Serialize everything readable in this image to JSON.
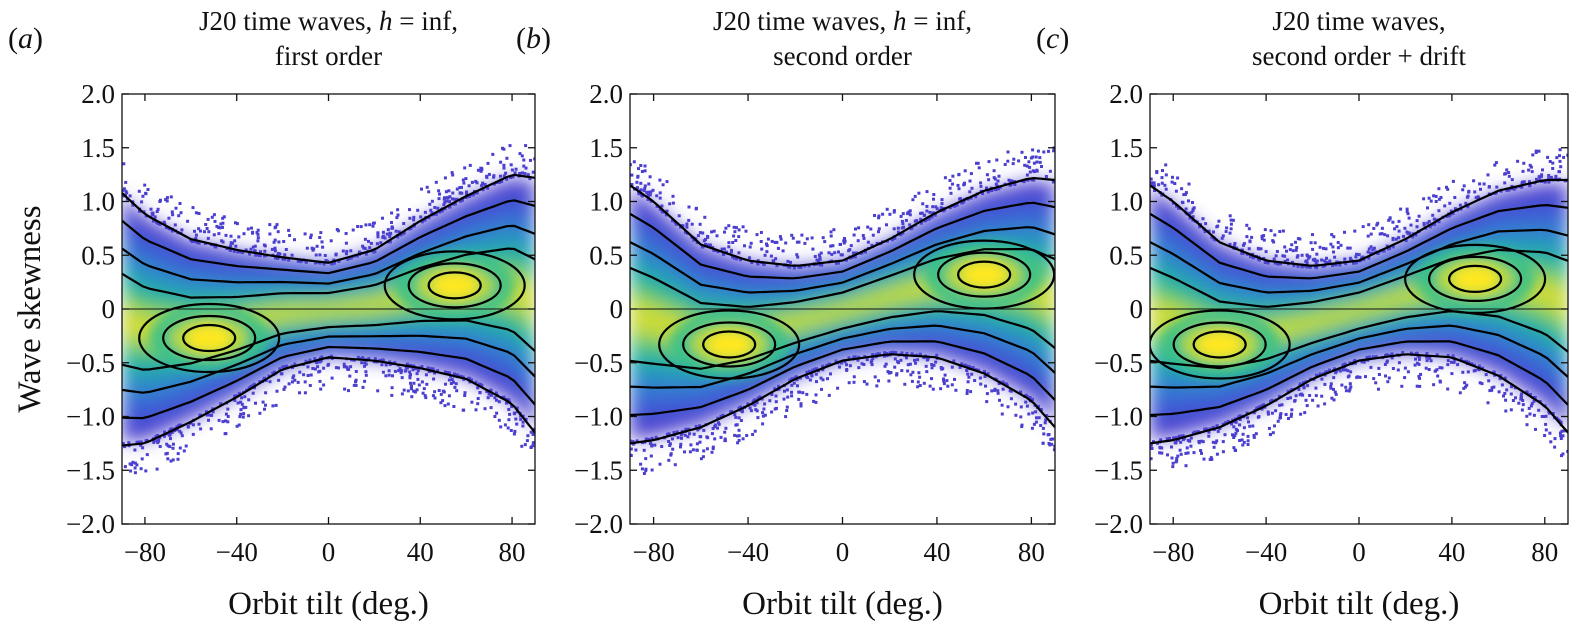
{
  "figure": {
    "ylabel": "Wave skewness",
    "xlabel": "Orbit tilt (deg.)"
  },
  "chart_data": [
    {
      "type": "scatter",
      "panel": "(a)",
      "panel_open": "(",
      "panel_letter": "a",
      "panel_close": ")",
      "title_line1_pre": "J20 time waves, ",
      "title_line1_var": "h",
      "title_line1_post": " = inf,",
      "title_line2": "first order",
      "xlabel": "Orbit tilt (deg.)",
      "ylabel": "Wave skewness",
      "xlim": [
        -90,
        90
      ],
      "ylim": [
        -2.0,
        2.0
      ],
      "xticks": [
        -80,
        -40,
        0,
        40,
        80
      ],
      "xtick_labels": [
        "−80",
        "−40",
        "0",
        "40",
        "80"
      ],
      "yticks": [
        2.0,
        1.5,
        1.0,
        0.5,
        0,
        -0.5,
        -1.0,
        -1.5,
        -2.0
      ],
      "ytick_labels": [
        "2.0",
        "1.5",
        "1.0",
        "0.5",
        "0",
        "−0.5",
        "−1.0",
        "−1.5",
        "−2.0"
      ],
      "zero_line": true,
      "density_peaks": [
        {
          "x": -52,
          "y": -0.27
        },
        {
          "x": 55,
          "y": 0.22
        }
      ],
      "upper_envelope": [
        [
          -90,
          1.08
        ],
        [
          -80,
          0.88
        ],
        [
          -60,
          0.65
        ],
        [
          -40,
          0.55
        ],
        [
          -20,
          0.48
        ],
        [
          0,
          0.43
        ],
        [
          20,
          0.55
        ],
        [
          40,
          0.82
        ],
        [
          60,
          1.05
        ],
        [
          80,
          1.25
        ],
        [
          90,
          1.22
        ]
      ],
      "lower_envelope": [
        [
          -90,
          -1.27
        ],
        [
          -80,
          -1.25
        ],
        [
          -60,
          -1.05
        ],
        [
          -40,
          -0.82
        ],
        [
          -20,
          -0.56
        ],
        [
          0,
          -0.45
        ],
        [
          20,
          -0.48
        ],
        [
          40,
          -0.55
        ],
        [
          60,
          -0.65
        ],
        [
          80,
          -0.88
        ],
        [
          90,
          -1.15
        ]
      ]
    },
    {
      "type": "scatter",
      "panel": "(b)",
      "panel_open": "(",
      "panel_letter": "b",
      "panel_close": ")",
      "title_line1_pre": "J20 time waves, ",
      "title_line1_var": "h",
      "title_line1_post": " = inf,",
      "title_line2": "second order",
      "xlabel": "Orbit tilt (deg.)",
      "ylabel": "",
      "xlim": [
        -90,
        90
      ],
      "ylim": [
        -2.0,
        2.0
      ],
      "xticks": [
        -80,
        -40,
        0,
        40,
        80
      ],
      "xtick_labels": [
        "−80",
        "−40",
        "0",
        "40",
        "80"
      ],
      "yticks": [
        2.0,
        1.5,
        1.0,
        0.5,
        0,
        -0.5,
        -1.0,
        -1.5,
        -2.0
      ],
      "ytick_labels": [
        "2.0",
        "1.5",
        "1.0",
        "0.5",
        "0",
        "−0.5",
        "−1.0",
        "−1.5",
        "−2.0"
      ],
      "zero_line": true,
      "density_peaks": [
        {
          "x": -48,
          "y": -0.33
        },
        {
          "x": 60,
          "y": 0.32
        }
      ],
      "upper_envelope": [
        [
          -90,
          1.15
        ],
        [
          -80,
          1.0
        ],
        [
          -60,
          0.6
        ],
        [
          -40,
          0.45
        ],
        [
          -20,
          0.4
        ],
        [
          0,
          0.45
        ],
        [
          20,
          0.65
        ],
        [
          40,
          0.9
        ],
        [
          60,
          1.1
        ],
        [
          80,
          1.22
        ],
        [
          90,
          1.2
        ]
      ],
      "lower_envelope": [
        [
          -90,
          -1.25
        ],
        [
          -80,
          -1.22
        ],
        [
          -60,
          -1.1
        ],
        [
          -40,
          -0.9
        ],
        [
          -20,
          -0.65
        ],
        [
          0,
          -0.48
        ],
        [
          20,
          -0.42
        ],
        [
          40,
          -0.45
        ],
        [
          60,
          -0.6
        ],
        [
          80,
          -0.85
        ],
        [
          90,
          -1.1
        ]
      ]
    },
    {
      "type": "scatter",
      "panel": "(c)",
      "panel_open": "(",
      "panel_letter": "c",
      "panel_close": ")",
      "title_line1_pre": "J20 time waves,",
      "title_line1_var": "",
      "title_line1_post": "",
      "title_line2": "second order + drift",
      "xlabel": "Orbit tilt (deg.)",
      "ylabel": "",
      "xlim": [
        -90,
        90
      ],
      "ylim": [
        -2.0,
        2.0
      ],
      "xticks": [
        -80,
        -40,
        0,
        40,
        80
      ],
      "xtick_labels": [
        "−80",
        "−40",
        "0",
        "40",
        "80"
      ],
      "yticks": [
        2.0,
        1.5,
        1.0,
        0.5,
        0,
        -0.5,
        -1.0,
        -1.5,
        -2.0
      ],
      "ytick_labels": [
        "2.0",
        "1.5",
        "1.0",
        "0.5",
        "0",
        "−0.5",
        "−1.0",
        "−1.5",
        "−2.0"
      ],
      "zero_line": true,
      "density_peaks": [
        {
          "x": -60,
          "y": -0.33
        },
        {
          "x": 50,
          "y": 0.28
        }
      ],
      "upper_envelope": [
        [
          -90,
          1.15
        ],
        [
          -80,
          1.0
        ],
        [
          -60,
          0.62
        ],
        [
          -40,
          0.45
        ],
        [
          -20,
          0.4
        ],
        [
          0,
          0.45
        ],
        [
          20,
          0.65
        ],
        [
          40,
          0.9
        ],
        [
          60,
          1.1
        ],
        [
          80,
          1.2
        ],
        [
          90,
          1.2
        ]
      ],
      "lower_envelope": [
        [
          -90,
          -1.25
        ],
        [
          -80,
          -1.22
        ],
        [
          -60,
          -1.1
        ],
        [
          -40,
          -0.9
        ],
        [
          -20,
          -0.65
        ],
        [
          0,
          -0.48
        ],
        [
          20,
          -0.42
        ],
        [
          40,
          -0.45
        ],
        [
          60,
          -0.62
        ],
        [
          80,
          -0.9
        ],
        [
          90,
          -1.15
        ]
      ]
    }
  ],
  "colors": {
    "scatter_low": "#4b3fcf",
    "density_high": "#fde724",
    "contour": "#000000",
    "axis": "#111111",
    "background": "#ffffff"
  }
}
